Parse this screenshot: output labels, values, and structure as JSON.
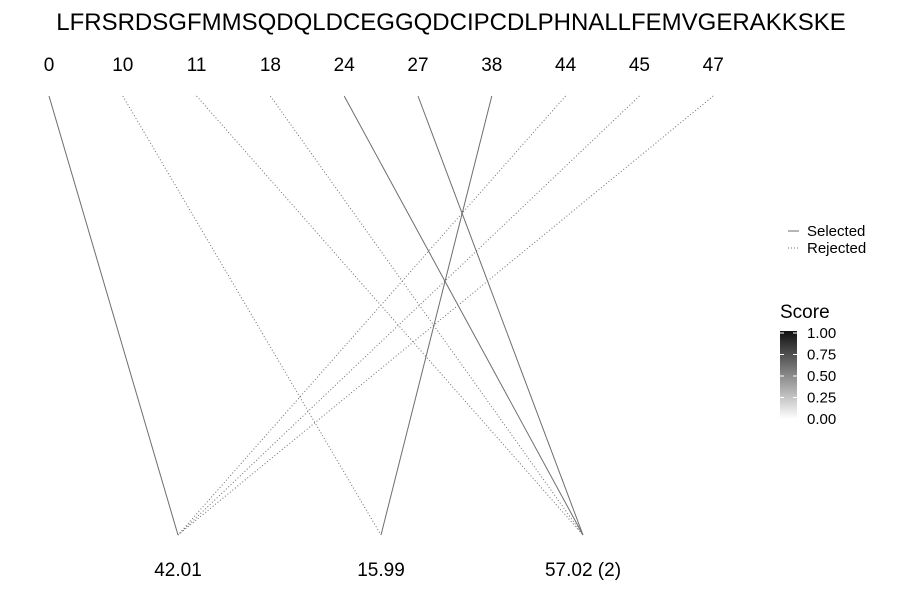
{
  "sequence": "LFRSRDSGFMMSQDQLDCEGGQDCIPCDLPHNALLFEMVGERAKKSKE",
  "positions": [
    "0",
    "10",
    "11",
    "18",
    "24",
    "27",
    "38",
    "44",
    "45",
    "47"
  ],
  "masses": [
    "42.01",
    "15.99",
    "57.02 (2)"
  ],
  "links": [
    {
      "from": "0",
      "to": "42.01",
      "status": "selected"
    },
    {
      "from": "10",
      "to": "15.99",
      "status": "rejected"
    },
    {
      "from": "11",
      "to": "57.02 (2)",
      "status": "rejected"
    },
    {
      "from": "18",
      "to": "57.02 (2)",
      "status": "rejected"
    },
    {
      "from": "24",
      "to": "57.02 (2)",
      "status": "selected"
    },
    {
      "from": "27",
      "to": "57.02 (2)",
      "status": "selected"
    },
    {
      "from": "38",
      "to": "15.99",
      "status": "selected"
    },
    {
      "from": "44",
      "to": "42.01",
      "status": "rejected"
    },
    {
      "from": "45",
      "to": "42.01",
      "status": "rejected"
    },
    {
      "from": "47",
      "to": "42.01",
      "status": "rejected"
    }
  ],
  "legend": {
    "selected_label": "Selected",
    "rejected_label": "Rejected",
    "line_color": "#6e6e6e"
  },
  "score_scale": {
    "title": "Score",
    "ticks": [
      "1.00",
      "0.75",
      "0.50",
      "0.25",
      "0.00"
    ],
    "color_high": "#111111",
    "color_low": "#ffffff"
  }
}
